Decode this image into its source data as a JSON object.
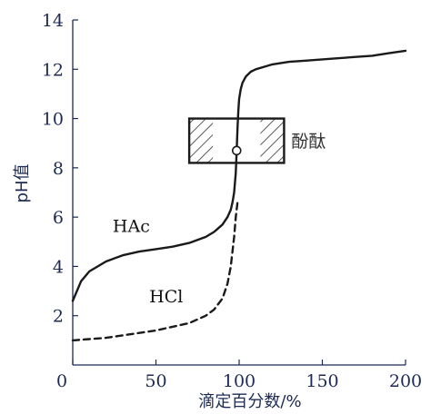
{
  "chart_data": {
    "type": "line",
    "xlabel": "滴定百分数/%",
    "ylabel": "pH值",
    "xlim": [
      0,
      200
    ],
    "ylim": [
      0,
      14
    ],
    "xticks": [
      0,
      50,
      100,
      150,
      200
    ],
    "yticks": [
      0,
      2,
      4,
      6,
      8,
      10,
      12,
      14
    ],
    "grid": false,
    "series": [
      {
        "name": "HAc",
        "style": "solid",
        "color": "#1a1a1a",
        "x": [
          0,
          5,
          10,
          20,
          30,
          40,
          50,
          60,
          70,
          80,
          85,
          90,
          93,
          95,
          96,
          97,
          98,
          98.5,
          99,
          99.5,
          100,
          101,
          102,
          104,
          107,
          110,
          115,
          120,
          130,
          140,
          150,
          160,
          170,
          180,
          190,
          200
        ],
        "y": [
          2.6,
          3.4,
          3.8,
          4.2,
          4.45,
          4.6,
          4.7,
          4.8,
          4.95,
          5.2,
          5.4,
          5.7,
          6.0,
          6.3,
          6.6,
          7.0,
          7.8,
          8.7,
          9.6,
          10.3,
          10.8,
          11.2,
          11.45,
          11.7,
          11.9,
          12.0,
          12.1,
          12.2,
          12.3,
          12.35,
          12.4,
          12.45,
          12.5,
          12.55,
          12.65,
          12.75
        ]
      },
      {
        "name": "HCl",
        "style": "dashed",
        "color": "#1a1a1a",
        "x": [
          0,
          10,
          20,
          30,
          40,
          50,
          60,
          70,
          80,
          85,
          90,
          93,
          95,
          97,
          98,
          99
        ],
        "y": [
          1.0,
          1.05,
          1.1,
          1.2,
          1.3,
          1.4,
          1.55,
          1.7,
          2.0,
          2.25,
          2.7,
          3.3,
          4.0,
          5.2,
          6.0,
          6.6
        ]
      }
    ],
    "indicator": {
      "label": "酚酞",
      "x_range": [
        70,
        127
      ],
      "ph_range": [
        8.2,
        10.0
      ]
    },
    "equivalence_point": {
      "x": 98.5,
      "y": 8.7
    }
  }
}
